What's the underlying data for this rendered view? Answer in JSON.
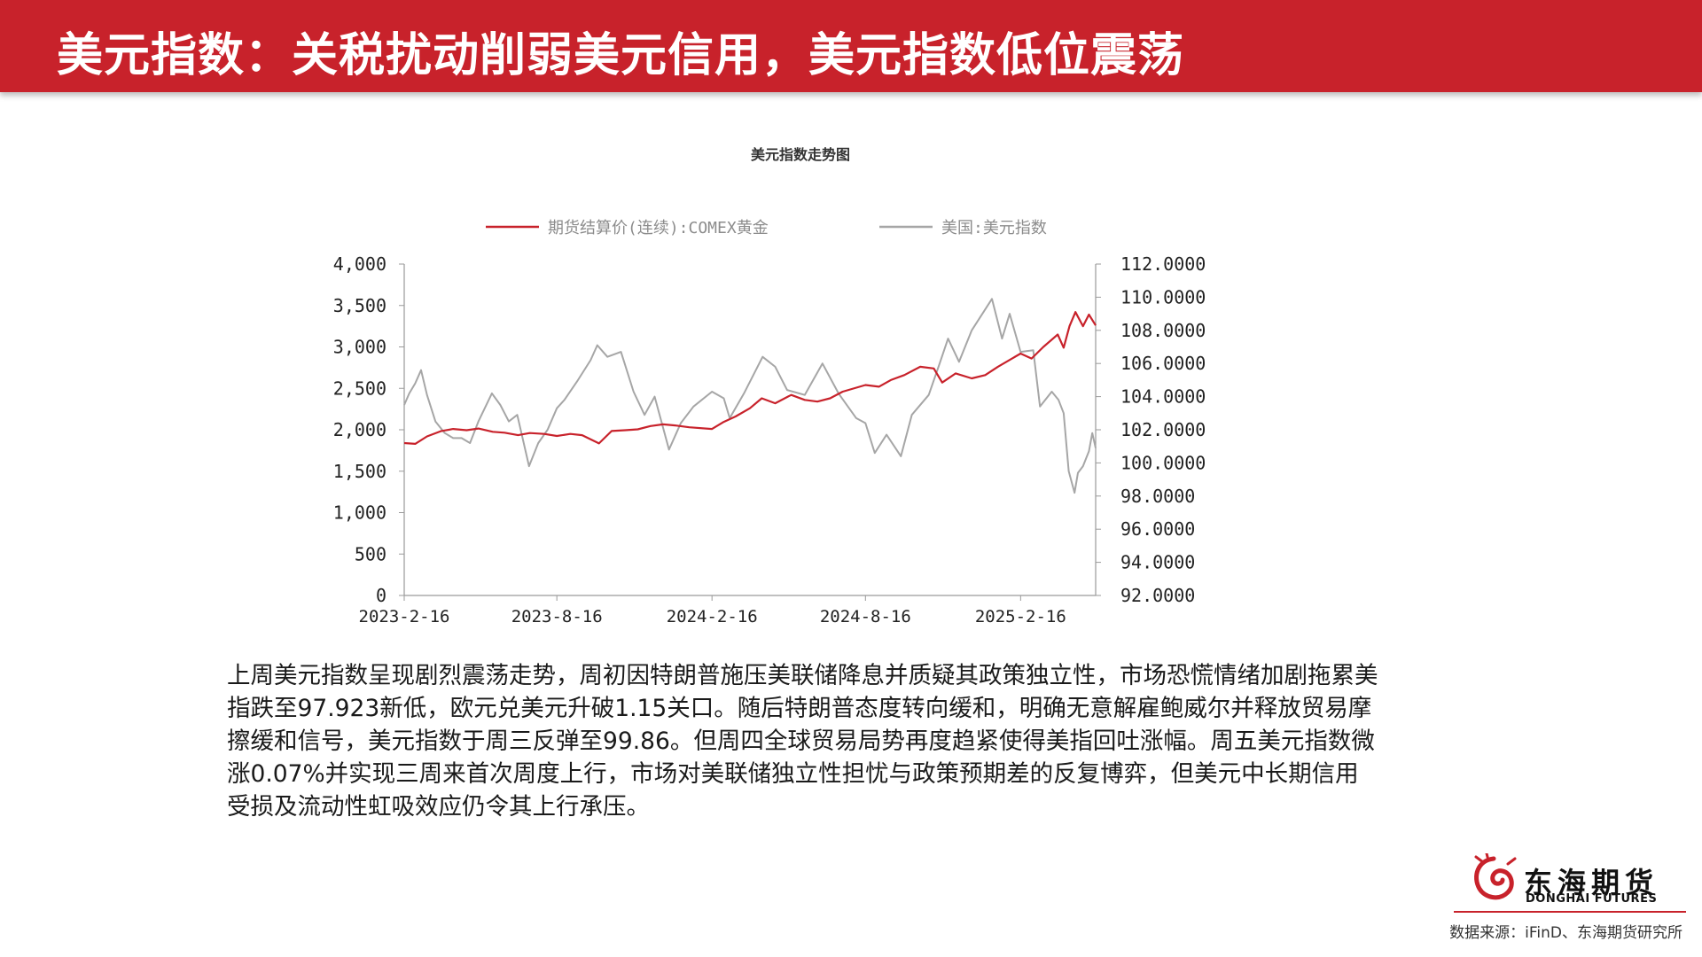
{
  "header": {
    "title": "美元指数：关税扰动削弱美元信用，美元指数低位震荡"
  },
  "chart_data": {
    "type": "line",
    "title": "美元指数走势图",
    "x_ticks": [
      "2023-2-16",
      "2023-8-16",
      "2024-2-16",
      "2024-8-16",
      "2025-2-16"
    ],
    "x_range": [
      "2023-2-16",
      "2025-5-16"
    ],
    "left_axis": {
      "ylim": [
        0,
        4000
      ],
      "ticks": [
        "0",
        "500",
        "1,000",
        "1,500",
        "2,000",
        "2,500",
        "3,000",
        "3,500",
        "4,000"
      ]
    },
    "right_axis": {
      "ylim": [
        92,
        112
      ],
      "ticks": [
        "92.0000",
        "94.0000",
        "96.0000",
        "98.0000",
        "100.0000",
        "102.0000",
        "104.0000",
        "106.0000",
        "108.0000",
        "110.0000",
        "112.0000"
      ]
    },
    "legend_position": "top",
    "series": [
      {
        "name": "期货结算价(连续):COMEX黄金",
        "axis": "left",
        "color": "#c8222b",
        "points": [
          [
            "2023-02-16",
            1840
          ],
          [
            "2023-03-01",
            1830
          ],
          [
            "2023-03-15",
            1920
          ],
          [
            "2023-04-01",
            1985
          ],
          [
            "2023-04-15",
            2010
          ],
          [
            "2023-05-01",
            1995
          ],
          [
            "2023-05-15",
            2015
          ],
          [
            "2023-06-01",
            1975
          ],
          [
            "2023-06-15",
            1965
          ],
          [
            "2023-07-01",
            1935
          ],
          [
            "2023-07-15",
            1960
          ],
          [
            "2023-08-01",
            1950
          ],
          [
            "2023-08-16",
            1925
          ],
          [
            "2023-09-01",
            1950
          ],
          [
            "2023-09-15",
            1935
          ],
          [
            "2023-10-05",
            1835
          ],
          [
            "2023-10-20",
            1985
          ],
          [
            "2023-11-05",
            1995
          ],
          [
            "2023-11-20",
            2005
          ],
          [
            "2023-12-05",
            2045
          ],
          [
            "2023-12-20",
            2065
          ],
          [
            "2024-01-05",
            2050
          ],
          [
            "2024-01-20",
            2030
          ],
          [
            "2024-02-16",
            2010
          ],
          [
            "2024-03-01",
            2095
          ],
          [
            "2024-03-15",
            2160
          ],
          [
            "2024-04-01",
            2260
          ],
          [
            "2024-04-15",
            2380
          ],
          [
            "2024-05-01",
            2320
          ],
          [
            "2024-05-20",
            2420
          ],
          [
            "2024-06-05",
            2360
          ],
          [
            "2024-06-20",
            2340
          ],
          [
            "2024-07-05",
            2380
          ],
          [
            "2024-07-20",
            2460
          ],
          [
            "2024-08-16",
            2540
          ],
          [
            "2024-09-01",
            2520
          ],
          [
            "2024-09-15",
            2600
          ],
          [
            "2024-10-01",
            2660
          ],
          [
            "2024-10-20",
            2760
          ],
          [
            "2024-11-05",
            2740
          ],
          [
            "2024-11-15",
            2570
          ],
          [
            "2024-12-01",
            2680
          ],
          [
            "2024-12-20",
            2620
          ],
          [
            "2025-01-05",
            2660
          ],
          [
            "2025-01-20",
            2760
          ],
          [
            "2025-02-16",
            2920
          ],
          [
            "2025-03-01",
            2860
          ],
          [
            "2025-03-15",
            3000
          ],
          [
            "2025-04-01",
            3150
          ],
          [
            "2025-04-08",
            2990
          ],
          [
            "2025-04-15",
            3250
          ],
          [
            "2025-04-22",
            3420
          ],
          [
            "2025-05-01",
            3250
          ],
          [
            "2025-05-08",
            3390
          ],
          [
            "2025-05-16",
            3260
          ]
        ]
      },
      {
        "name": "美国:美元指数",
        "axis": "right",
        "color": "#a6a6a6",
        "points": [
          [
            "2023-02-16",
            103.5
          ],
          [
            "2023-02-22",
            104.2
          ],
          [
            "2023-03-01",
            104.8
          ],
          [
            "2023-03-08",
            105.6
          ],
          [
            "2023-03-15",
            104.1
          ],
          [
            "2023-03-25",
            102.5
          ],
          [
            "2023-04-05",
            101.8
          ],
          [
            "2023-04-15",
            101.5
          ],
          [
            "2023-04-25",
            101.5
          ],
          [
            "2023-05-05",
            101.2
          ],
          [
            "2023-05-15",
            102.5
          ],
          [
            "2023-05-31",
            104.2
          ],
          [
            "2023-06-10",
            103.5
          ],
          [
            "2023-06-20",
            102.5
          ],
          [
            "2023-06-30",
            102.9
          ],
          [
            "2023-07-14",
            99.8
          ],
          [
            "2023-07-25",
            101.2
          ],
          [
            "2023-08-05",
            102.0
          ],
          [
            "2023-08-16",
            103.3
          ],
          [
            "2023-08-25",
            103.8
          ],
          [
            "2023-09-10",
            105.0
          ],
          [
            "2023-09-25",
            106.2
          ],
          [
            "2023-10-03",
            107.1
          ],
          [
            "2023-10-15",
            106.4
          ],
          [
            "2023-10-31",
            106.7
          ],
          [
            "2023-11-15",
            104.3
          ],
          [
            "2023-11-28",
            102.9
          ],
          [
            "2023-12-10",
            104.0
          ],
          [
            "2023-12-27",
            100.8
          ],
          [
            "2024-01-10",
            102.4
          ],
          [
            "2024-01-25",
            103.4
          ],
          [
            "2024-02-16",
            104.3
          ],
          [
            "2024-03-01",
            103.9
          ],
          [
            "2024-03-08",
            102.7
          ],
          [
            "2024-03-25",
            104.2
          ],
          [
            "2024-04-16",
            106.4
          ],
          [
            "2024-05-01",
            105.8
          ],
          [
            "2024-05-15",
            104.4
          ],
          [
            "2024-06-05",
            104.1
          ],
          [
            "2024-06-26",
            106.0
          ],
          [
            "2024-07-15",
            104.2
          ],
          [
            "2024-08-05",
            102.7
          ],
          [
            "2024-08-16",
            102.4
          ],
          [
            "2024-08-27",
            100.6
          ],
          [
            "2024-09-10",
            101.7
          ],
          [
            "2024-09-27",
            100.4
          ],
          [
            "2024-10-10",
            102.9
          ],
          [
            "2024-10-30",
            104.1
          ],
          [
            "2024-11-12",
            106.0
          ],
          [
            "2024-11-22",
            107.5
          ],
          [
            "2024-12-05",
            106.1
          ],
          [
            "2024-12-20",
            108.0
          ],
          [
            "2025-01-13",
            109.9
          ],
          [
            "2025-01-25",
            107.5
          ],
          [
            "2025-02-03",
            109.0
          ],
          [
            "2025-02-16",
            106.7
          ],
          [
            "2025-03-03",
            106.8
          ],
          [
            "2025-03-11",
            103.4
          ],
          [
            "2025-03-25",
            104.3
          ],
          [
            "2025-04-02",
            103.8
          ],
          [
            "2025-04-08",
            103.0
          ],
          [
            "2025-04-14",
            99.5
          ],
          [
            "2025-04-21",
            98.2
          ],
          [
            "2025-04-25",
            99.4
          ],
          [
            "2025-05-01",
            99.8
          ],
          [
            "2025-05-08",
            100.7
          ],
          [
            "2025-05-12",
            101.8
          ],
          [
            "2025-05-16",
            100.9
          ]
        ]
      }
    ]
  },
  "analysis": {
    "paragraph": "上周美元指数呈现剧烈震荡走势，周初因特朗普施压美联储降息并质疑其政策独立性，市场恐慌情绪加剧拖累美指跌至97.923新低，欧元兑美元升破1.15关口。随后特朗普态度转向缓和，明确无意解雇鲍威尔并释放贸易摩擦缓和信号，美元指数于周三反弹至99.86。但周四全球贸易局势再度趋紧使得美指回吐涨幅。周五美元指数微涨0.07%并实现三周来首次周度上行，市场对美联储独立性担忧与政策预期差的反复博弈，但美元中长期信用受损及流动性虹吸效应仍令其上行承压。"
  },
  "footer": {
    "logo_cn": "东海期货",
    "logo_en": "DONGHAI FUTURES",
    "source": "数据来源：iFinD、东海期货研究所",
    "brand_color": "#c8222b"
  }
}
